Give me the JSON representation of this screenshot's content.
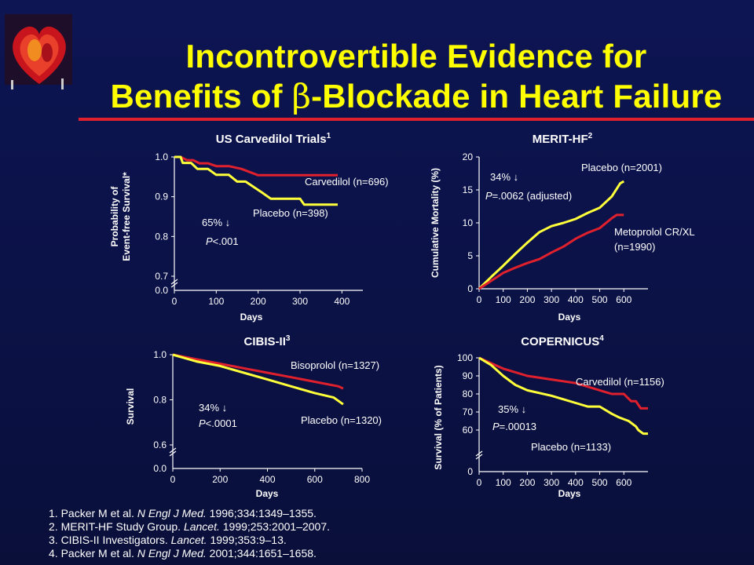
{
  "title": {
    "line1": "Incontrovertible Evidence for",
    "line2_pre": "Benefits of ",
    "line2_beta": "β",
    "line2_post": "-Blockade in Heart Failure"
  },
  "colors": {
    "title": "#ffff00",
    "accent_line": "#e0202c",
    "red_series": "#e0202c",
    "yellow_series": "#ffff3a",
    "background": "#0b1247"
  },
  "references": [
    {
      "num": "1.",
      "pre": "Packer M et al.",
      "journal": "N Engl J Med.",
      "post": "1996;334:1349–1355."
    },
    {
      "num": "2.",
      "pre": "MERIT-HF Study Group.",
      "journal": "Lancet.",
      "post": "1999;253:2001–2007."
    },
    {
      "num": "3.",
      "pre": "CIBIS-II Investigators.",
      "journal": "Lancet.",
      "post": "1999;353:9–13."
    },
    {
      "num": "4.",
      "pre": "Packer M et al.",
      "journal": "N Engl J Med.",
      "post": "2001;344:1651–1658."
    }
  ],
  "chart_data": [
    {
      "type": "line",
      "title": "US Carvedilol Trials",
      "title_sup": "1",
      "xlabel": "Days",
      "ylabel": "Probability of Event-free Survival*",
      "ylabel_lines": [
        "Probability of",
        "Event-free Survival*"
      ],
      "xlim": [
        0,
        450
      ],
      "ylim": [
        0.7,
        1.0
      ],
      "axis_break": true,
      "y_bottom_label": "0.0",
      "xticks": [
        "0",
        "100",
        "200",
        "300",
        "400"
      ],
      "yticks": [
        "0.7",
        "0.8",
        "0.9",
        "1.0"
      ],
      "annotation": {
        "line1": "65% ↓",
        "line2": "P<.001"
      },
      "series": [
        {
          "name": "Carvedilol (n=696)",
          "color": "#e0202c",
          "x": [
            0,
            15,
            30,
            45,
            60,
            80,
            100,
            130,
            160,
            200,
            330,
            390
          ],
          "y": [
            1.0,
            1.0,
            0.992,
            0.992,
            0.984,
            0.984,
            0.977,
            0.977,
            0.97,
            0.954,
            0.954,
            0.954
          ]
        },
        {
          "name": "Placebo (n=398)",
          "color": "#ffff3a",
          "x": [
            0,
            15,
            20,
            40,
            55,
            80,
            100,
            130,
            150,
            170,
            210,
            230,
            300,
            310,
            390
          ],
          "y": [
            1.0,
            1.0,
            0.985,
            0.985,
            0.97,
            0.97,
            0.955,
            0.955,
            0.938,
            0.938,
            0.91,
            0.895,
            0.895,
            0.88,
            0.88
          ]
        }
      ]
    },
    {
      "type": "line",
      "title": "MERIT-HF",
      "title_sup": "2",
      "xlabel": "Days",
      "ylabel": "Cumulative Mortality (%)",
      "xlim": [
        0,
        700
      ],
      "ylim": [
        0,
        20
      ],
      "xticks": [
        "0",
        "100",
        "200",
        "300",
        "400",
        "500",
        "600"
      ],
      "yticks": [
        "0",
        "5",
        "10",
        "15",
        "20"
      ],
      "annotation": {
        "line1": "34% ↓",
        "line2": "P=.0062 (adjusted)"
      },
      "series": [
        {
          "name": "Placebo (n=2001)",
          "color": "#ffff3a",
          "x": [
            0,
            50,
            100,
            150,
            200,
            250,
            300,
            350,
            400,
            450,
            500,
            550,
            585,
            600
          ],
          "y": [
            0,
            1.8,
            3.5,
            5.3,
            7.0,
            8.6,
            9.5,
            10.0,
            10.6,
            11.5,
            12.3,
            14.0,
            16.0,
            16.3
          ]
        },
        {
          "name": "Metoprolol CR/XL (n=1990)",
          "label_lines": [
            "Metoprolol CR/XL",
            "(n=1990)"
          ],
          "color": "#e0202c",
          "x": [
            0,
            50,
            100,
            150,
            200,
            250,
            300,
            350,
            400,
            450,
            500,
            550,
            570,
            600
          ],
          "y": [
            0,
            1.2,
            2.4,
            3.2,
            3.9,
            4.5,
            5.5,
            6.4,
            7.6,
            8.5,
            9.2,
            10.7,
            11.2,
            11.2
          ]
        }
      ]
    },
    {
      "type": "line",
      "title": "CIBIS-II",
      "title_sup": "3",
      "xlabel": "Days",
      "ylabel": "Survival",
      "xlim": [
        0,
        800
      ],
      "ylim": [
        0.6,
        1.0
      ],
      "axis_break": true,
      "y_bottom_label": "0.0",
      "xticks": [
        "0",
        "200",
        "400",
        "600",
        "800"
      ],
      "yticks": [
        "0.6",
        "0.8",
        "1.0"
      ],
      "annotation": {
        "line1": "34% ↓",
        "line2": "P<.0001"
      },
      "series": [
        {
          "name": "Bisoprolol (n=1327)",
          "color": "#e0202c",
          "x": [
            0,
            50,
            100,
            200,
            300,
            400,
            500,
            600,
            700,
            720
          ],
          "y": [
            1.0,
            0.99,
            0.98,
            0.96,
            0.94,
            0.92,
            0.9,
            0.88,
            0.86,
            0.85
          ]
        },
        {
          "name": "Placebo (n=1320)",
          "color": "#ffff3a",
          "x": [
            0,
            50,
            100,
            200,
            300,
            400,
            500,
            600,
            680,
            720
          ],
          "y": [
            1.0,
            0.985,
            0.97,
            0.95,
            0.92,
            0.89,
            0.86,
            0.83,
            0.81,
            0.78
          ]
        }
      ]
    },
    {
      "type": "line",
      "title": "COPERNICUS",
      "title_sup": "4",
      "xlabel": "Days",
      "ylabel": "Survival (% of Patients)",
      "xlim": [
        0,
        700
      ],
      "ylim": [
        50,
        100
      ],
      "axis_break": true,
      "y_bottom_label": "0",
      "xticks": [
        "0",
        "100",
        "200",
        "300",
        "400",
        "500",
        "600"
      ],
      "yticks": [
        "60",
        "70",
        "80",
        "90",
        "100"
      ],
      "annotation": {
        "line1": "35% ↓",
        "line2": "P=.00013"
      },
      "series": [
        {
          "name": "Carvedilol (n=1156)",
          "color": "#e0202c",
          "x": [
            0,
            50,
            100,
            200,
            300,
            400,
            500,
            550,
            600,
            630,
            650,
            670,
            700
          ],
          "y": [
            100,
            97,
            94,
            90,
            88,
            86,
            82,
            80,
            80,
            76,
            76,
            72,
            72
          ]
        },
        {
          "name": "Placebo (n=1133)",
          "color": "#ffff3a",
          "x": [
            0,
            50,
            100,
            150,
            200,
            300,
            400,
            450,
            500,
            550,
            580,
            620,
            650,
            660,
            680,
            700
          ],
          "y": [
            100,
            96,
            90,
            85,
            82,
            79,
            75,
            73,
            73,
            69,
            67,
            65,
            62,
            60,
            58,
            58
          ]
        }
      ]
    }
  ]
}
